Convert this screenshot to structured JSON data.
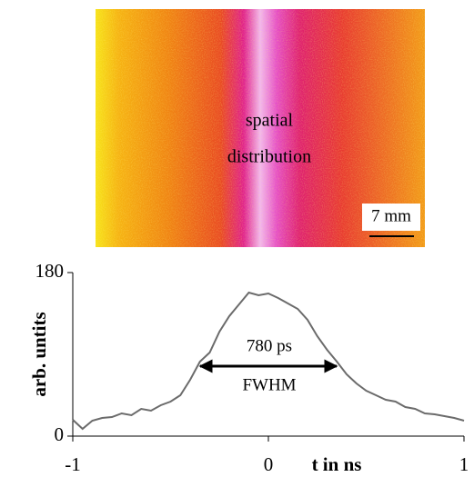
{
  "chart_data": {
    "type": "line",
    "image_labels": [
      "spatial",
      "distribution"
    ],
    "scale_bar_label": "7 mm",
    "annotations": [
      "780 ps",
      "FWHM"
    ],
    "xlabel": "t in ns",
    "ylabel": "arb. untits",
    "x": [
      -1,
      -0.95,
      -0.9,
      -0.85,
      -0.8,
      -0.75,
      -0.7,
      -0.65,
      -0.6,
      -0.55,
      -0.5,
      -0.45,
      -0.4,
      -0.35,
      -0.3,
      -0.25,
      -0.2,
      -0.15,
      -0.1,
      -0.05,
      0,
      0.05,
      0.1,
      0.15,
      0.2,
      0.25,
      0.3,
      0.35,
      0.4,
      0.45,
      0.5,
      0.55,
      0.6,
      0.65,
      0.7,
      0.75,
      0.8,
      0.85,
      0.9,
      0.95,
      1
    ],
    "values": [
      18,
      8,
      17,
      20,
      21,
      25,
      23,
      30,
      28,
      34,
      38,
      45,
      62,
      82,
      92,
      115,
      132,
      145,
      158,
      155,
      157,
      152,
      146,
      140,
      128,
      110,
      95,
      82,
      68,
      58,
      50,
      45,
      40,
      38,
      32,
      30,
      25,
      24,
      22,
      20,
      17
    ],
    "color": "#6b6b6b",
    "xlim": [
      -1,
      1
    ],
    "xticks": [
      -1,
      0,
      1
    ],
    "ylim": [
      0,
      180
    ],
    "yticks": [
      0,
      180
    ]
  }
}
